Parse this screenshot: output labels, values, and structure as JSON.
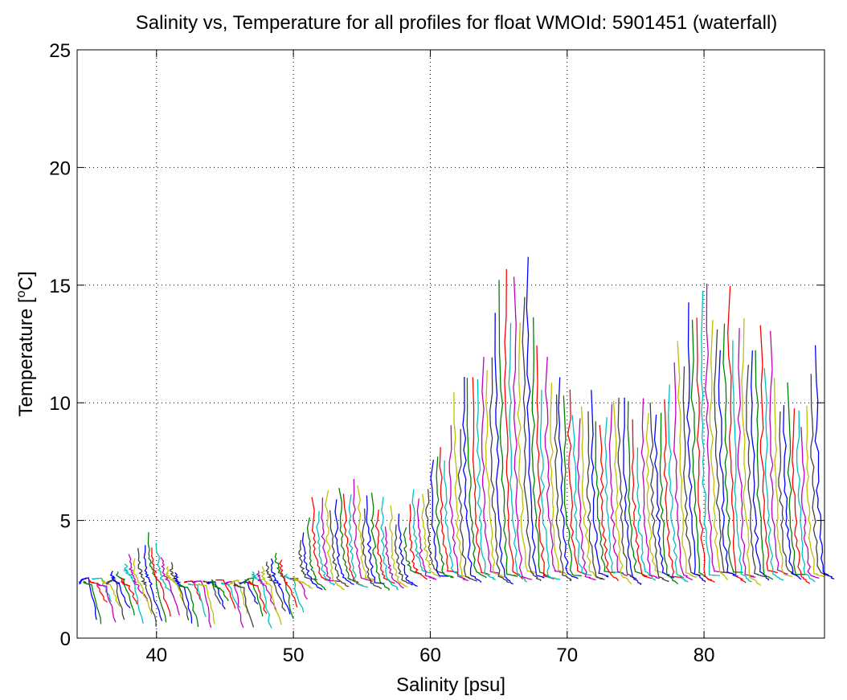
{
  "chart_data": {
    "type": "line",
    "title": "Salinity vs, Temperature for all profiles for float WMOId: 5901451 (waterfall)",
    "xlabel": "Salinity [psu]",
    "ylabel_main": "Temperature [",
    "ylabel_sup": "o",
    "ylabel_end": "C]",
    "xlim": [
      34.2,
      88.8
    ],
    "ylim": [
      0,
      25
    ],
    "xticks": [
      40,
      50,
      60,
      70,
      80
    ],
    "yticks": [
      0,
      5,
      10,
      15,
      20,
      25
    ],
    "grid": true,
    "grid_style": "dotted",
    "waterfall": {
      "first_profile_salinity": 34.4,
      "last_profile_salinity": 88.2,
      "profile_count": 162,
      "series_colors": [
        "#0000ff",
        "#008000",
        "#ff0000",
        "#00bfbf",
        "#bf00bf",
        "#bfbf00",
        "#404040"
      ]
    },
    "profile_max_temperature_by_salinity": [
      {
        "s": 34.5,
        "t": 2.4
      },
      {
        "s": 36.0,
        "t": 2.5
      },
      {
        "s": 37.5,
        "t": 3.0
      },
      {
        "s": 38.5,
        "t": 4.0
      },
      {
        "s": 39.5,
        "t": 4.5
      },
      {
        "s": 40.5,
        "t": 3.5
      },
      {
        "s": 42.0,
        "t": 2.5
      },
      {
        "s": 45.0,
        "t": 2.4
      },
      {
        "s": 47.0,
        "t": 2.7
      },
      {
        "s": 48.0,
        "t": 3.8
      },
      {
        "s": 49.0,
        "t": 3.5
      },
      {
        "s": 50.0,
        "t": 2.8
      },
      {
        "s": 51.0,
        "t": 5.6
      },
      {
        "s": 52.0,
        "t": 6.4
      },
      {
        "s": 53.0,
        "t": 6.0
      },
      {
        "s": 54.0,
        "t": 7.2
      },
      {
        "s": 55.0,
        "t": 6.5
      },
      {
        "s": 56.5,
        "t": 5.8
      },
      {
        "s": 58.0,
        "t": 5.5
      },
      {
        "s": 59.5,
        "t": 6.8
      },
      {
        "s": 60.5,
        "t": 8.2
      },
      {
        "s": 61.5,
        "t": 9.5
      },
      {
        "s": 62.5,
        "t": 11.5
      },
      {
        "s": 63.5,
        "t": 12.5
      },
      {
        "s": 64.5,
        "t": 14.5
      },
      {
        "s": 65.3,
        "t": 16.5
      },
      {
        "s": 66.0,
        "t": 15.5
      },
      {
        "s": 67.3,
        "t": 16.2
      },
      {
        "s": 68.0,
        "t": 12.0
      },
      {
        "s": 69.0,
        "t": 11.5
      },
      {
        "s": 70.0,
        "t": 10.5
      },
      {
        "s": 71.0,
        "t": 10.0
      },
      {
        "s": 72.0,
        "t": 11.0
      },
      {
        "s": 73.0,
        "t": 10.5
      },
      {
        "s": 74.0,
        "t": 10.0
      },
      {
        "s": 75.0,
        "t": 9.8
      },
      {
        "s": 76.0,
        "t": 10.2
      },
      {
        "s": 77.0,
        "t": 10.5
      },
      {
        "s": 78.0,
        "t": 12.0
      },
      {
        "s": 79.0,
        "t": 14.5
      },
      {
        "s": 79.8,
        "t": 15.4
      },
      {
        "s": 80.5,
        "t": 15.0
      },
      {
        "s": 81.5,
        "t": 14.5
      },
      {
        "s": 82.5,
        "t": 14.5
      },
      {
        "s": 83.5,
        "t": 13.0
      },
      {
        "s": 84.5,
        "t": 13.5
      },
      {
        "s": 85.5,
        "t": 11.5
      },
      {
        "s": 86.5,
        "t": 10.5
      },
      {
        "s": 87.5,
        "t": 11.0
      },
      {
        "s": 88.2,
        "t": 12.3
      }
    ],
    "deep_temperature": 2.8
  }
}
